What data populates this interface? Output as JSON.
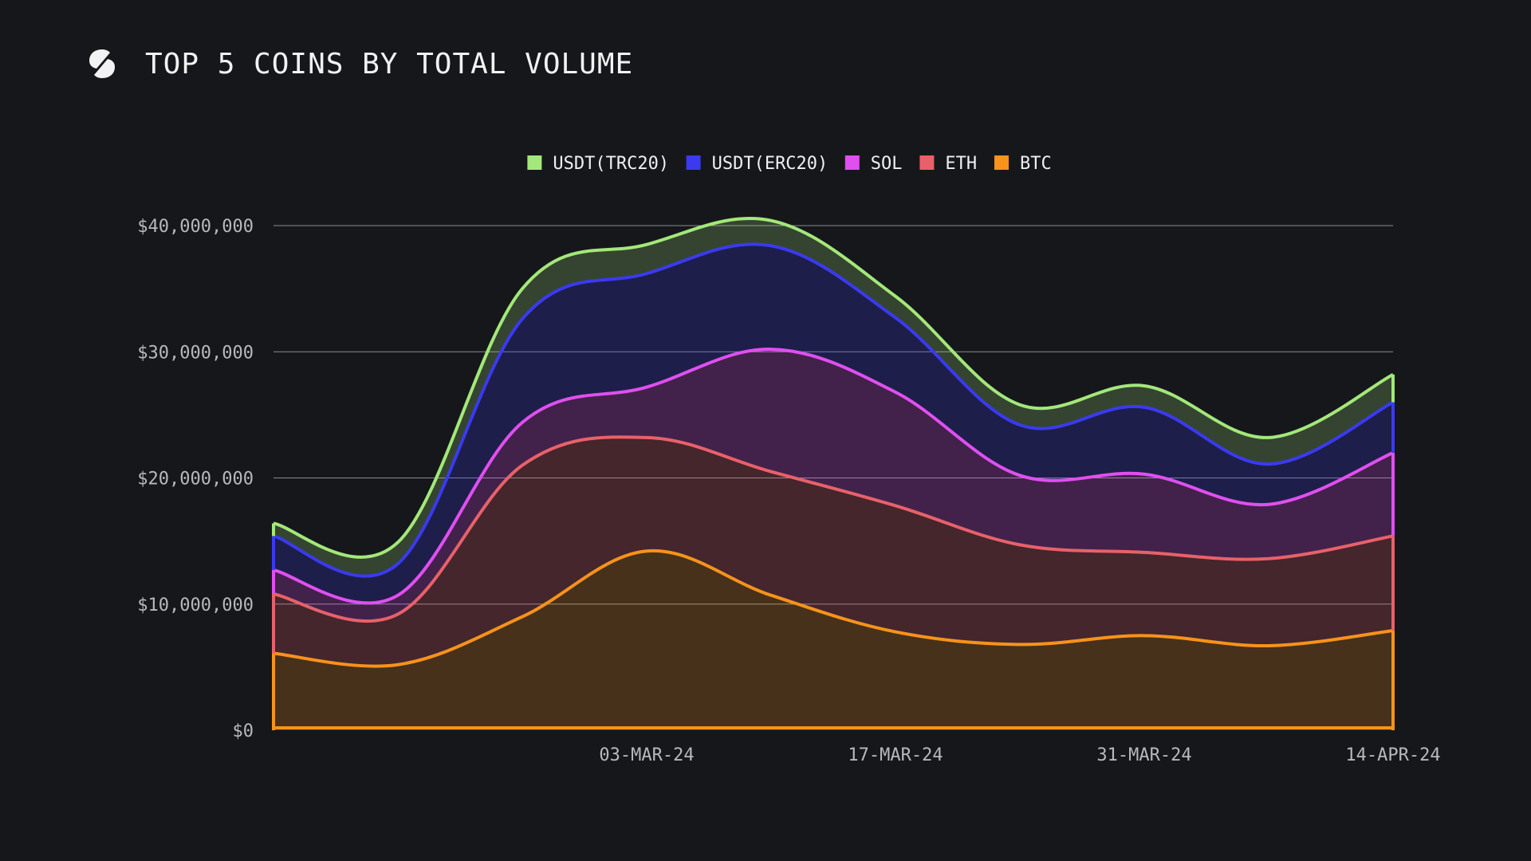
{
  "header": {
    "title": "TOP 5 COINS BY TOTAL VOLUME",
    "logo_icon": "brand-logo-icon"
  },
  "chart_data": {
    "type": "area",
    "stacked": true,
    "title": "TOP 5 COINS BY TOTAL VOLUME",
    "xlabel": "",
    "ylabel": "",
    "ylim": [
      0,
      40000000
    ],
    "yticks": [
      0,
      10000000,
      20000000,
      30000000,
      40000000
    ],
    "ytick_labels": [
      "$0",
      "$10,000,000",
      "$20,000,000",
      "$30,000,000",
      "$40,000,000"
    ],
    "x": [
      "11-FEB-24",
      "18-FEB-24",
      "25-FEB-24",
      "03-MAR-24",
      "10-MAR-24",
      "17-MAR-24",
      "24-MAR-24",
      "31-MAR-24",
      "07-APR-24",
      "14-APR-24"
    ],
    "xtick_labels": [
      "03-MAR-24",
      "17-MAR-24",
      "31-MAR-24",
      "14-APR-24"
    ],
    "grid": true,
    "legend_position": "top-center",
    "series": [
      {
        "name": "BTC",
        "color": "#f7931a",
        "values": [
          6100000,
          5200000,
          9000000,
          14200000,
          10700000,
          7800000,
          6800000,
          7500000,
          6700000,
          7900000
        ]
      },
      {
        "name": "ETH",
        "color": "#e8616a",
        "values": [
          4700000,
          4000000,
          12000000,
          9000000,
          9800000,
          10000000,
          7900000,
          6600000,
          6900000,
          7500000
        ]
      },
      {
        "name": "SOL",
        "color": "#e04ff0",
        "values": [
          1900000,
          1500000,
          3400000,
          4000000,
          9700000,
          9000000,
          5500000,
          6200000,
          4300000,
          6600000
        ]
      },
      {
        "name": "USDT(ERC20)",
        "color": "#3a3af0",
        "values": [
          2700000,
          2500000,
          8200000,
          9000000,
          8200000,
          5900000,
          4000000,
          5300000,
          3200000,
          4000000
        ]
      },
      {
        "name": "USDT(TRC20)",
        "color": "#a3e87a",
        "values": [
          1000000,
          1700000,
          2400000,
          2300000,
          2000000,
          1700000,
          1600000,
          1700000,
          2100000,
          2200000
        ]
      }
    ],
    "legend_order": [
      "USDT(TRC20)",
      "USDT(ERC20)",
      "SOL",
      "ETH",
      "BTC"
    ]
  }
}
